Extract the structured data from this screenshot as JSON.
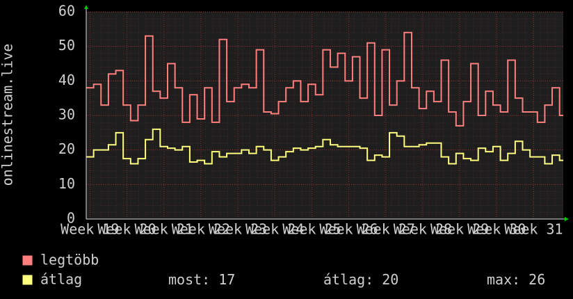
{
  "chart_data": {
    "type": "line",
    "y_label": "onlinestream.live",
    "xlim": [
      18.9,
      31.8
    ],
    "xticks": [
      {
        "value": 19,
        "label": "Week 19"
      },
      {
        "value": 20,
        "label": "Week 20"
      },
      {
        "value": 21,
        "label": "Week 21"
      },
      {
        "value": 22,
        "label": "Week 22"
      },
      {
        "value": 23,
        "label": "Week 23"
      },
      {
        "value": 24,
        "label": "Week 24"
      },
      {
        "value": 25,
        "label": "Week 25"
      },
      {
        "value": 26,
        "label": "Week 26"
      },
      {
        "value": 27,
        "label": "Week 27"
      },
      {
        "value": 28,
        "label": "Week 28"
      },
      {
        "value": 29,
        "label": "Week 29"
      },
      {
        "value": 30,
        "label": "Week 30"
      },
      {
        "value": 31,
        "label": "Week 31"
      }
    ],
    "ylim": [
      0,
      60
    ],
    "yticks": [
      0,
      10,
      20,
      30,
      40,
      50,
      60
    ],
    "grid": true,
    "step": true,
    "x": [
      18.9,
      19.1,
      19.3,
      19.5,
      19.7,
      19.9,
      20.1,
      20.3,
      20.5,
      20.7,
      20.9,
      21.1,
      21.3,
      21.5,
      21.7,
      21.9,
      22.1,
      22.3,
      22.5,
      22.7,
      22.9,
      23.1,
      23.3,
      23.5,
      23.7,
      23.9,
      24.1,
      24.3,
      24.5,
      24.7,
      24.9,
      25.1,
      25.3,
      25.5,
      25.7,
      25.9,
      26.1,
      26.3,
      26.5,
      26.7,
      26.9,
      27.1,
      27.3,
      27.5,
      27.7,
      27.9,
      28.1,
      28.3,
      28.5,
      28.7,
      28.9,
      29.1,
      29.3,
      29.5,
      29.7,
      29.9,
      30.1,
      30.3,
      30.5,
      30.7,
      30.9,
      31.1,
      31.3,
      31.5,
      31.7
    ],
    "series": [
      {
        "name": "legtöbb",
        "color": "#ff7f7f",
        "values": [
          38,
          39,
          33,
          42,
          43,
          33,
          28.5,
          33,
          53,
          37,
          35,
          45,
          38,
          28,
          36,
          29,
          38,
          28,
          52,
          34,
          38,
          39,
          38,
          49,
          31,
          30.5,
          34,
          38,
          40,
          34,
          39,
          36,
          49,
          44,
          48,
          40,
          47,
          35,
          51,
          30,
          49,
          33,
          40,
          54,
          38,
          32,
          37,
          34,
          46,
          31,
          27,
          34,
          45,
          30,
          37,
          33,
          31,
          46,
          35,
          31,
          31,
          28,
          33,
          38,
          30
        ]
      },
      {
        "name": "átlag",
        "color": "#ffff7f",
        "values": [
          18,
          20,
          20,
          21.5,
          25,
          17.5,
          16,
          17.5,
          23,
          26,
          21,
          20.5,
          20,
          21,
          16.5,
          17,
          16,
          19.5,
          18,
          19,
          19,
          20,
          19,
          21,
          20,
          17,
          18,
          19.5,
          20.5,
          20,
          20.5,
          21,
          23,
          21.5,
          21,
          21,
          21,
          20.5,
          17,
          18.5,
          18,
          25,
          24,
          21,
          21,
          21.5,
          22,
          22,
          18,
          16,
          19,
          17.5,
          17,
          20.5,
          19.5,
          21,
          17,
          19,
          22.5,
          20,
          18,
          18,
          16,
          18.5,
          17
        ]
      }
    ],
    "stats": [
      {
        "label": "most:",
        "value": 17
      },
      {
        "label": "átlag:",
        "value": 20
      },
      {
        "label": "max:",
        "value": 26
      }
    ]
  }
}
